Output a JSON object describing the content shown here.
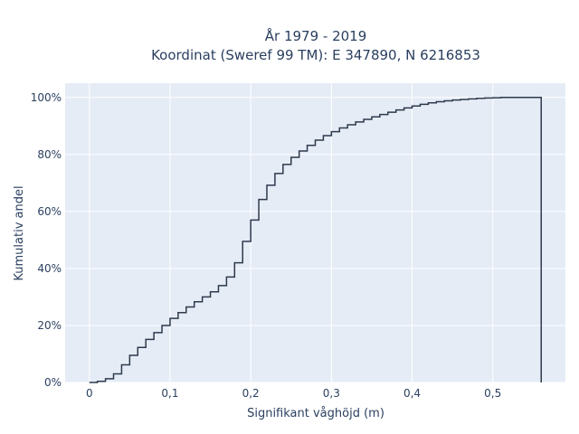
{
  "chart_data": {
    "type": "line",
    "step": "post",
    "title_lines": [
      "År 1979 - 2019",
      "Koordinat (Sweref 99 TM): E 347890, N 6216853"
    ],
    "xlabel": "Signifikant våghöjd (m)",
    "ylabel": "Kumulativ andel",
    "xlim": [
      -0.03,
      0.59
    ],
    "ylim": [
      0,
      1.05
    ],
    "x_ticks": [
      0,
      0.1,
      0.2,
      0.3,
      0.4,
      0.5
    ],
    "x_tick_labels": [
      "0",
      "0,1",
      "0,2",
      "0,3",
      "0,4",
      "0,5"
    ],
    "y_ticks": [
      0,
      0.2,
      0.4,
      0.6,
      0.8,
      1.0
    ],
    "y_tick_labels": [
      "0%",
      "20%",
      "40%",
      "60%",
      "80%",
      "100%"
    ],
    "grid": true,
    "colors": {
      "plot_bg": "#e5ecf6",
      "grid": "#ffffff",
      "line": "#2e3a4d"
    },
    "series": [
      {
        "x": [
          0,
          0.01,
          0.02,
          0.03,
          0.04,
          0.05,
          0.06,
          0.07,
          0.08,
          0.09,
          0.1,
          0.11,
          0.12,
          0.13,
          0.14,
          0.15,
          0.16,
          0.17,
          0.18,
          0.19,
          0.2,
          0.21,
          0.22,
          0.23,
          0.24,
          0.25,
          0.26,
          0.27,
          0.28,
          0.29,
          0.3,
          0.31,
          0.32,
          0.33,
          0.34,
          0.35,
          0.36,
          0.37,
          0.38,
          0.39,
          0.4,
          0.41,
          0.42,
          0.43,
          0.44,
          0.45,
          0.46,
          0.47,
          0.48,
          0.49,
          0.5,
          0.51,
          0.52,
          0.53,
          0.54,
          0.55,
          0.56
        ],
        "y": [
          0.0,
          0.004,
          0.013,
          0.03,
          0.062,
          0.095,
          0.123,
          0.151,
          0.175,
          0.2,
          0.225,
          0.245,
          0.265,
          0.283,
          0.3,
          0.318,
          0.34,
          0.37,
          0.42,
          0.495,
          0.57,
          0.642,
          0.692,
          0.733,
          0.765,
          0.79,
          0.812,
          0.832,
          0.85,
          0.866,
          0.88,
          0.893,
          0.904,
          0.914,
          0.923,
          0.932,
          0.94,
          0.948,
          0.956,
          0.963,
          0.97,
          0.976,
          0.981,
          0.985,
          0.988,
          0.991,
          0.993,
          0.995,
          0.997,
          0.998,
          0.999,
          1.0,
          1.0,
          1.0,
          1.0,
          1.0,
          0.0
        ]
      }
    ]
  }
}
